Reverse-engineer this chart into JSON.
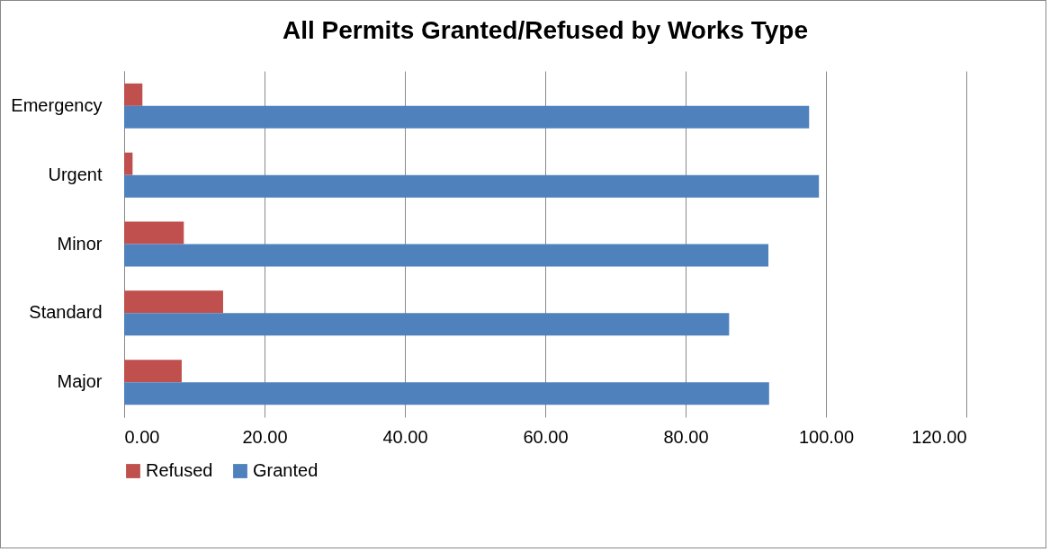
{
  "chart_data": {
    "type": "bar",
    "orientation": "horizontal",
    "title": "All Permits Granted/Refused by Works Type",
    "categories": [
      "Emergency",
      "Urgent",
      "Minor",
      "Standard",
      "Major"
    ],
    "series": [
      {
        "name": "Refused",
        "color": "#c0504d",
        "values": [
          2.6,
          1.2,
          8.5,
          14.1,
          8.2
        ]
      },
      {
        "name": "Granted",
        "color": "#4f81bd",
        "values": [
          97.6,
          99.0,
          91.8,
          86.2,
          91.9
        ]
      }
    ],
    "xlim": [
      0,
      120
    ],
    "xticks": [
      {
        "value": 0,
        "label": "0.00"
      },
      {
        "value": 20,
        "label": "20.00"
      },
      {
        "value": 40,
        "label": "40.00"
      },
      {
        "value": 60,
        "label": "60.00"
      },
      {
        "value": 80,
        "label": "80.00"
      },
      {
        "value": 100,
        "label": "100.00"
      },
      {
        "value": 120,
        "label": "120.00"
      }
    ],
    "grid": "x",
    "legend": "bottom"
  }
}
